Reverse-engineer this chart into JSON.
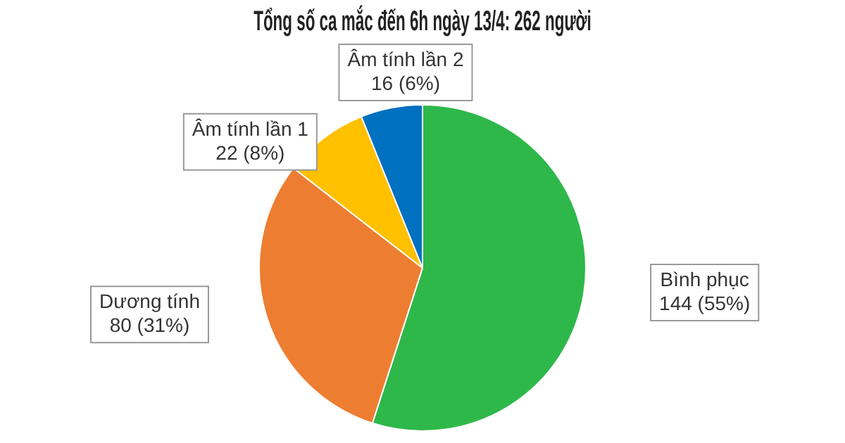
{
  "chart_data": {
    "type": "pie",
    "title": "Tổng số ca mắc đến 6h ngày 13/4: 262 người",
    "categories": [
      "Bình phục",
      "Dương tính",
      "Âm tính lần 1",
      "Âm tính lần 2"
    ],
    "values": [
      144,
      80,
      22,
      16
    ],
    "colors": [
      "#2eb84a",
      "#ed7d31",
      "#ffc000",
      "#0070c0"
    ],
    "value_labels": [
      "144 (55%)",
      "80 (31%)",
      "22 (8%)",
      "16 (6%)"
    ],
    "legend": false
  }
}
